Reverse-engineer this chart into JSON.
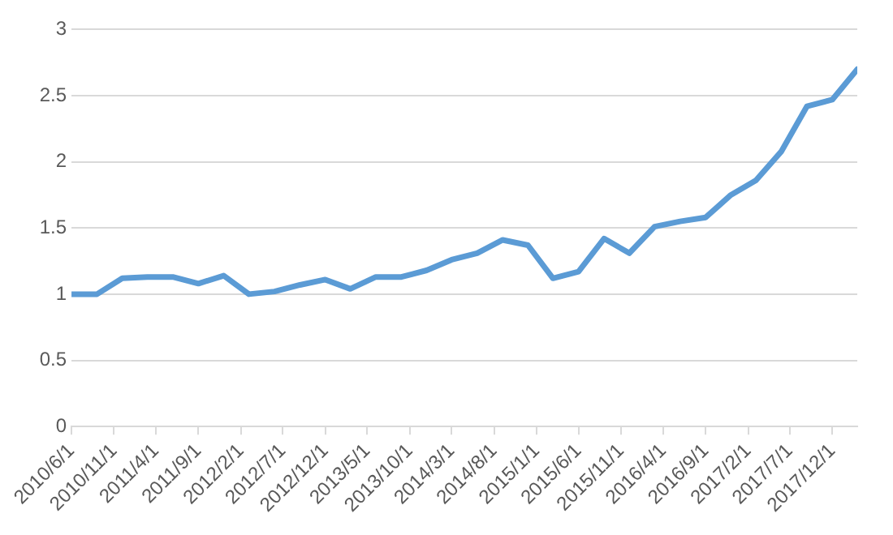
{
  "chart_data": {
    "type": "line",
    "x": [
      "2010-06-01",
      "2010-09-01",
      "2010-12-01",
      "2011-03-01",
      "2011-06-01",
      "2011-09-01",
      "2011-12-01",
      "2012-03-01",
      "2012-06-01",
      "2012-09-01",
      "2012-12-01",
      "2013-03-01",
      "2013-06-01",
      "2013-09-01",
      "2013-12-01",
      "2014-03-01",
      "2014-06-01",
      "2014-09-01",
      "2014-12-01",
      "2015-03-01",
      "2015-06-01",
      "2015-09-01",
      "2015-12-01",
      "2016-03-01",
      "2016-06-01",
      "2016-09-01",
      "2016-12-01",
      "2017-03-01",
      "2017-06-01",
      "2017-09-01",
      "2017-12-01",
      "2018-03-01"
    ],
    "series": [
      {
        "color": "#5b9bd5",
        "values": [
          1.0,
          1.0,
          1.12,
          1.13,
          1.13,
          1.08,
          1.14,
          1.0,
          1.02,
          1.07,
          1.11,
          1.04,
          1.13,
          1.13,
          1.18,
          1.26,
          1.31,
          1.41,
          1.37,
          1.12,
          1.17,
          1.42,
          1.31,
          1.51,
          1.55,
          1.58,
          1.75,
          1.86,
          2.08,
          2.42,
          2.47,
          2.7
        ]
      }
    ],
    "xlim": [
      "2010-06-01",
      "2018-03-01"
    ],
    "xticks": [
      {
        "value": "2010-06-01",
        "label": "2010/6/1"
      },
      {
        "value": "2010-11-01",
        "label": "2010/11/1"
      },
      {
        "value": "2011-04-01",
        "label": "2011/4/1"
      },
      {
        "value": "2011-09-01",
        "label": "2011/9/1"
      },
      {
        "value": "2012-02-01",
        "label": "2012/2/1"
      },
      {
        "value": "2012-07-01",
        "label": "2012/7/1"
      },
      {
        "value": "2012-12-01",
        "label": "2012/12/1"
      },
      {
        "value": "2013-05-01",
        "label": "2013/5/1"
      },
      {
        "value": "2013-10-01",
        "label": "2013/10/1"
      },
      {
        "value": "2014-03-01",
        "label": "2014/3/1"
      },
      {
        "value": "2014-08-01",
        "label": "2014/8/1"
      },
      {
        "value": "2015-01-01",
        "label": "2015/1/1"
      },
      {
        "value": "2015-06-01",
        "label": "2015/6/1"
      },
      {
        "value": "2015-11-01",
        "label": "2015/11/1"
      },
      {
        "value": "2016-04-01",
        "label": "2016/4/1"
      },
      {
        "value": "2016-09-01",
        "label": "2016/9/1"
      },
      {
        "value": "2017-02-01",
        "label": "2017/2/1"
      },
      {
        "value": "2017-07-01",
        "label": "2017/7/1"
      },
      {
        "value": "2017-12-01",
        "label": "2017/12/1"
      }
    ],
    "ylim": [
      0,
      3
    ],
    "yticks": [
      0,
      0.5,
      1,
      1.5,
      2,
      2.5,
      3
    ],
    "grid": "y",
    "marker": "none",
    "line_style": "solid",
    "legend": false
  }
}
